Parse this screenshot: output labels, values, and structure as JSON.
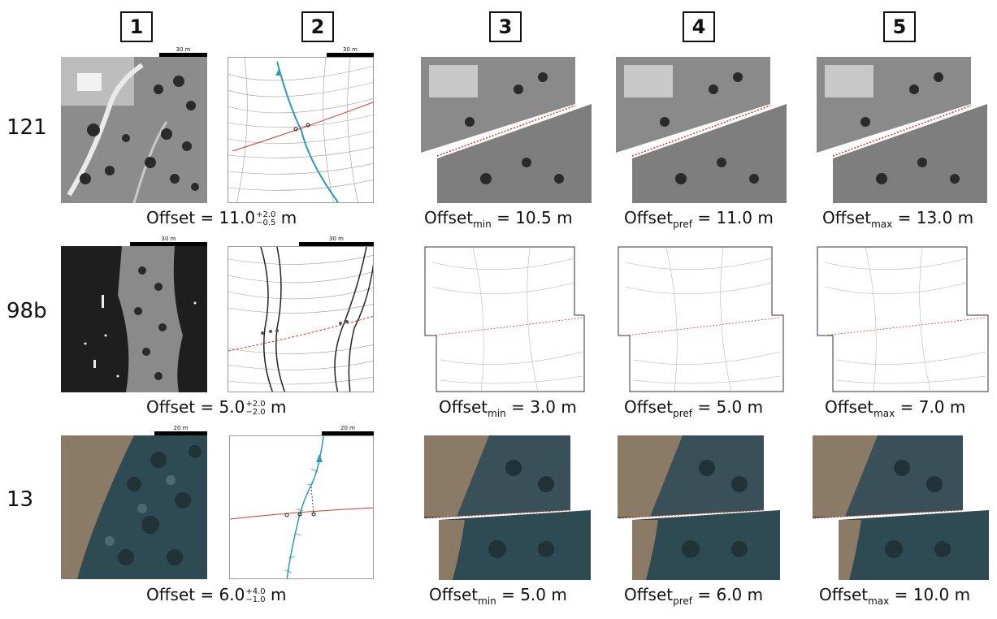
{
  "columns": [
    "1",
    "2",
    "3",
    "4",
    "5"
  ],
  "rows": [
    {
      "label": "121",
      "scale1": "30 m",
      "scale2": "30 m",
      "offset_text": "Offset = 11.0",
      "offset_plus": "+2.0",
      "offset_minus": "−0.5",
      "offset_unit": "m",
      "min_prefix": "Offset",
      "min_sub": "min",
      "min_value": "= 10.5 m",
      "pref_prefix": "Offset",
      "pref_sub": "pref",
      "pref_value": "= 11.0 m",
      "max_prefix": "Offset",
      "max_sub": "max",
      "max_value": "= 13.0 m"
    },
    {
      "label": "98b",
      "scale1": "30 m",
      "scale2": "30 m",
      "offset_text": "Offset = 5.0",
      "offset_plus": "+2.0",
      "offset_minus": "−2.0",
      "offset_unit": "m",
      "min_prefix": "Offset",
      "min_sub": "min",
      "min_value": "= 3.0 m",
      "pref_prefix": "Offset",
      "pref_sub": "pref",
      "pref_value": "= 5.0 m",
      "max_prefix": "Offset",
      "max_sub": "max",
      "max_value": "= 7.0 m"
    },
    {
      "label": "13",
      "scale1": "20 m",
      "scale2": "20 m",
      "offset_text": "Offset = 6.0",
      "offset_plus": "+4.0",
      "offset_minus": "−1.0",
      "offset_unit": "m",
      "min_prefix": "Offset",
      "min_sub": "min",
      "min_value": "= 5.0 m",
      "pref_prefix": "Offset",
      "pref_sub": "pref",
      "pref_value": "= 6.0 m",
      "max_prefix": "Offset",
      "max_sub": "max",
      "max_value": "= 10.0 m"
    }
  ],
  "colors": {
    "fault_trace": "#d23a2a",
    "channel": "#2a9bb3",
    "contour": "#8a8a8a",
    "aerial_grey": "#6b6b6b",
    "aerial_dark": "#1e1e1e",
    "aerial_color_field": "#8b7a66",
    "aerial_color_trees": "#2e4a52"
  }
}
